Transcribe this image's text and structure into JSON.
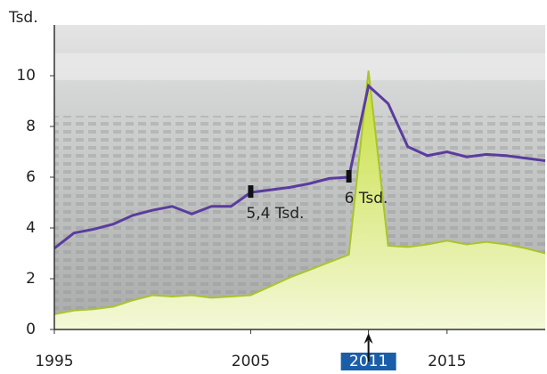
{
  "chart_data": {
    "type": "line",
    "y_unit_label": "Tsd.",
    "x": [
      1995,
      1996,
      1997,
      1998,
      1999,
      2000,
      2001,
      2002,
      2003,
      2004,
      2005,
      2006,
      2007,
      2008,
      2009,
      2010,
      2011,
      2012,
      2013,
      2014,
      2015,
      2016,
      2017,
      2018,
      2019,
      2020
    ],
    "series": [
      {
        "kind": "area",
        "color": "#c6de3a",
        "values": [
          0.6,
          0.75,
          0.8,
          0.9,
          1.15,
          1.35,
          1.3,
          1.35,
          1.25,
          1.3,
          1.35,
          1.7,
          2.05,
          2.35,
          2.65,
          2.95,
          10.2,
          3.3,
          3.25,
          3.35,
          3.5,
          3.35,
          3.45,
          3.35,
          3.2,
          3.0
        ]
      },
      {
        "kind": "line",
        "color": "#5a3c9e",
        "values": [
          3.2,
          3.8,
          3.95,
          4.15,
          4.5,
          4.7,
          4.85,
          4.55,
          4.85,
          4.85,
          5.4,
          5.5,
          5.6,
          5.75,
          5.95,
          6.0,
          9.6,
          8.9,
          7.2,
          6.85,
          7.0,
          6.8,
          6.9,
          6.85,
          6.75,
          6.65
        ]
      }
    ],
    "annotations": [
      {
        "label": "5,4 Tsd.",
        "x": 2005,
        "value": 5.4
      },
      {
        "label": "6 Tsd.",
        "x": 2010,
        "value": 6
      }
    ],
    "xlim": [
      1995,
      2020
    ],
    "ylim": [
      0,
      12
    ],
    "xticks": [
      1995,
      2005,
      2011,
      2015
    ],
    "highlighted_xtick": 2011,
    "highlight_color": "#1a5ea8",
    "yticks": [
      0,
      2,
      4,
      6,
      8,
      10
    ]
  }
}
